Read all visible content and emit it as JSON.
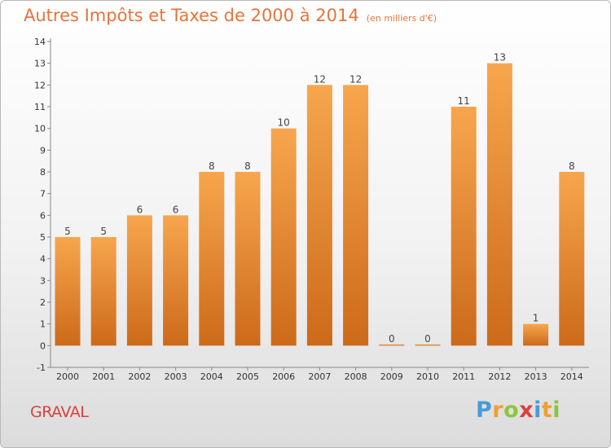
{
  "title": "Autres Impôts et Taxes de 2000 à 2014",
  "unit": "(en milliers d'€)",
  "commune": "GRAVAL",
  "logo": {
    "letters": [
      "P",
      "r",
      "o",
      "x",
      "i",
      "t",
      "i"
    ],
    "colors": [
      "#4a9ad8",
      "#f0a030",
      "#8cc63f",
      "#d9413f",
      "#4a9ad8",
      "#f0a030",
      "#8cc63f"
    ]
  },
  "chart_data": {
    "type": "bar",
    "categories": [
      "2000",
      "2001",
      "2002",
      "2003",
      "2004",
      "2005",
      "2006",
      "2007",
      "2008",
      "2009",
      "2010",
      "2011",
      "2012",
      "2013",
      "2014"
    ],
    "values": [
      5,
      5,
      6,
      6,
      8,
      8,
      10,
      12,
      12,
      0,
      0,
      11,
      13,
      1,
      8
    ],
    "value_labels": [
      "5",
      "5",
      "6",
      "6",
      "8",
      "8",
      "10",
      "12",
      "12",
      "0",
      "0",
      "11",
      "13",
      "1",
      "8"
    ],
    "yticks": [
      -1,
      0,
      1,
      2,
      3,
      4,
      5,
      6,
      7,
      8,
      9,
      10,
      11,
      12,
      13,
      14
    ],
    "ylim": [
      -1,
      14
    ],
    "grid": false,
    "bar_color_top": "#f7a64e",
    "bar_color_bottom": "#cc6a1a"
  }
}
